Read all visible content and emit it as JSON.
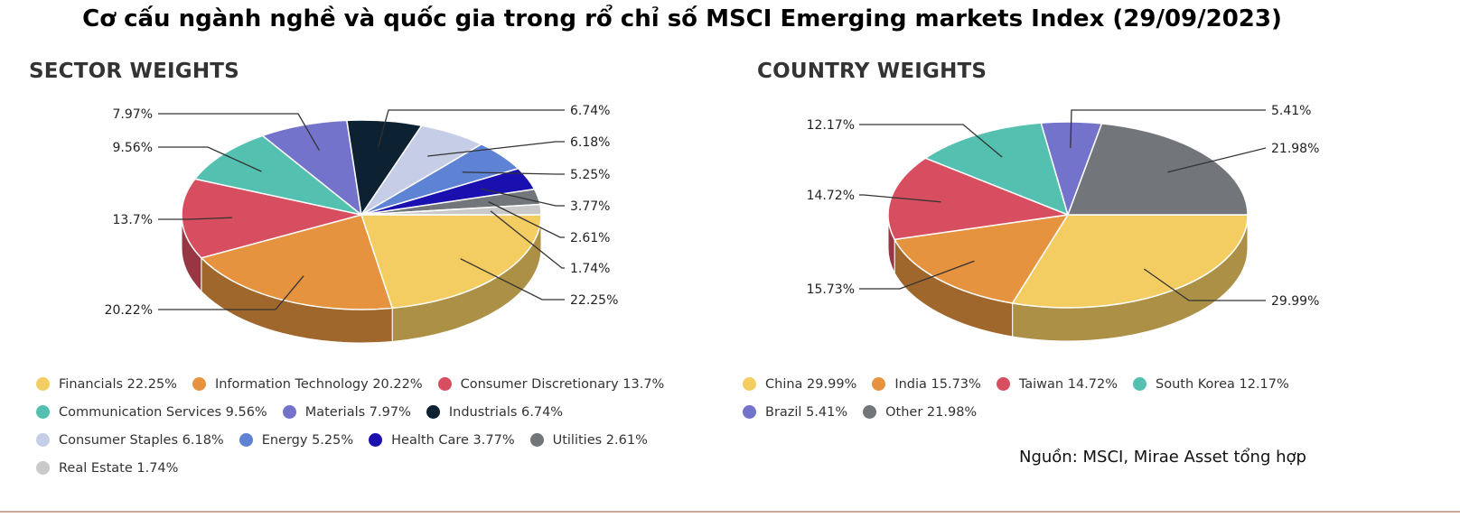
{
  "title": "Cơ cấu ngành nghề và quốc gia trong rổ chỉ số MSCI Emerging markets Index (29/09/2023)",
  "source": "Nguồn: MSCI, Mirae Asset tổng hợp",
  "chart_data": [
    {
      "type": "pie",
      "title": "SECTOR WEIGHTS",
      "slices": [
        {
          "name": "Financials",
          "value": 22.25,
          "label": "22.25%",
          "legend": "Financials 22.25%",
          "color": "#f4cd62"
        },
        {
          "name": "Information Technology",
          "value": 20.22,
          "label": "20.22%",
          "legend": "Information Technology 20.22%",
          "color": "#e5933f"
        },
        {
          "name": "Consumer Discretionary",
          "value": 13.7,
          "label": "13.7%",
          "legend": "Consumer Discretionary 13.7%",
          "color": "#d64e5f"
        },
        {
          "name": "Communication Services",
          "value": 9.56,
          "label": "9.56%",
          "legend": "Communication Services 9.56%",
          "color": "#54c0b0"
        },
        {
          "name": "Materials",
          "value": 7.97,
          "label": "7.97%",
          "legend": "Materials 7.97%",
          "color": "#7373cc"
        },
        {
          "name": "Industrials",
          "value": 6.74,
          "label": "6.74%",
          "legend": "Industrials 6.74%",
          "color": "#0c2233"
        },
        {
          "name": "Consumer Staples",
          "value": 6.18,
          "label": "6.18%",
          "legend": "Consumer Staples 6.18%",
          "color": "#c6cde6"
        },
        {
          "name": "Energy",
          "value": 5.25,
          "label": "5.25%",
          "legend": "Energy 5.25%",
          "color": "#5e82d4"
        },
        {
          "name": "Health Care",
          "value": 3.77,
          "label": "3.77%",
          "legend": "Health Care 3.77%",
          "color": "#1a10b0"
        },
        {
          "name": "Utilities",
          "value": 2.61,
          "label": "2.61%",
          "legend": "Utilities 2.61%",
          "color": "#727579"
        },
        {
          "name": "Real Estate",
          "value": 1.74,
          "label": "1.74%",
          "legend": "Real Estate 1.74%",
          "color": "#c9c9c9"
        }
      ],
      "legend_rows": [
        [
          0,
          1,
          2
        ],
        [
          3,
          4,
          5
        ],
        [
          6,
          7,
          8,
          9
        ],
        [
          10
        ]
      ]
    },
    {
      "type": "pie",
      "title": "COUNTRY WEIGHTS",
      "slices": [
        {
          "name": "China",
          "value": 29.99,
          "label": "29.99%",
          "legend": "China 29.99%",
          "color": "#f4cd62"
        },
        {
          "name": "India",
          "value": 15.73,
          "label": "15.73%",
          "legend": "India 15.73%",
          "color": "#e5933f"
        },
        {
          "name": "Taiwan",
          "value": 14.72,
          "label": "14.72%",
          "legend": "Taiwan 14.72%",
          "color": "#d64e5f"
        },
        {
          "name": "South Korea",
          "value": 12.17,
          "label": "12.17%",
          "legend": "South Korea 12.17%",
          "color": "#54c0b0"
        },
        {
          "name": "Brazil",
          "value": 5.41,
          "label": "5.41%",
          "legend": "Brazil 5.41%",
          "color": "#7373cc"
        },
        {
          "name": "Other",
          "value": 21.98,
          "label": "21.98%",
          "legend": "Other 21.98%",
          "color": "#727579"
        }
      ],
      "legend_rows": [
        [
          0,
          1,
          2,
          3
        ],
        [
          4,
          5
        ]
      ]
    }
  ]
}
